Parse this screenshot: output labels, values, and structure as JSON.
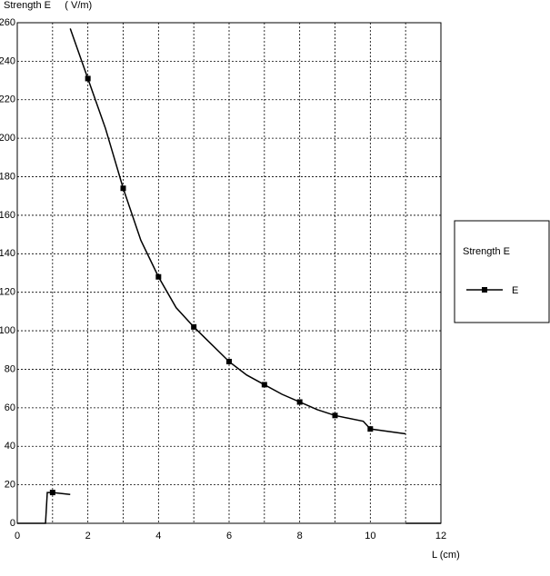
{
  "chart_data": {
    "type": "line",
    "y_label": "Strength E     ( V/m)",
    "x_label": "L (cm)",
    "legend_title": "Strength E",
    "legend_position": "right",
    "grid": true,
    "xlim": [
      0,
      12
    ],
    "xticks": [
      0,
      2,
      4,
      6,
      8,
      10,
      12
    ],
    "minor_xticks": [
      1,
      3,
      5,
      7,
      9,
      11
    ],
    "ylim": [
      0,
      260
    ],
    "yticks": [
      0,
      20,
      40,
      60,
      80,
      100,
      120,
      140,
      160,
      180,
      200,
      220,
      240,
      260
    ],
    "series": [
      {
        "name": "E",
        "color": "#000000",
        "x": [
          0,
          0.8,
          0.85,
          1,
          1.5,
          null,
          1.5,
          2,
          2.5,
          3,
          3.5,
          4,
          4.5,
          5,
          5.5,
          6,
          6.5,
          7,
          7.5,
          8,
          8.5,
          9,
          9.8,
          10,
          11,
          null,
          11,
          12
        ],
        "values": [
          0,
          0,
          16,
          16,
          15,
          null,
          257,
          231,
          205,
          174,
          147,
          128,
          112,
          102,
          93,
          84,
          77,
          72,
          67,
          63,
          59,
          56,
          53,
          49,
          46.5,
          null,
          0,
          0
        ],
        "marker_x": [
          1,
          2,
          3,
          4,
          5,
          6,
          7,
          8,
          9,
          10
        ]
      }
    ]
  }
}
